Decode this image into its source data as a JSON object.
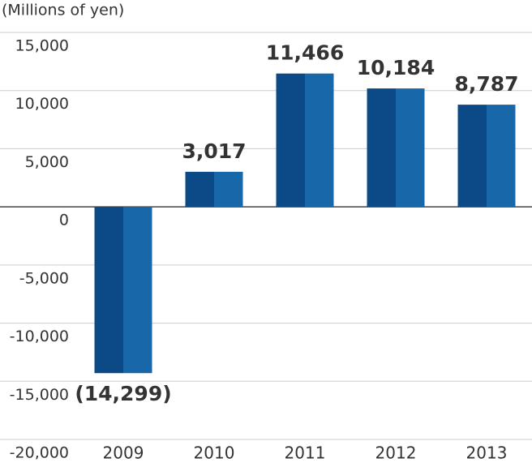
{
  "chart_data": {
    "type": "bar",
    "y_axis_label": "(Millions of yen)",
    "categories": [
      "2009",
      "2010",
      "2011",
      "2012",
      "2013"
    ],
    "values": [
      -14299,
      3017,
      11466,
      10184,
      8787
    ],
    "value_labels": [
      "(14,299)",
      "3,017",
      "11,466",
      "10,184",
      "8,787"
    ],
    "colors": [
      "#0b4a87",
      "#1767a9"
    ],
    "ylim": [
      -20000,
      15000
    ],
    "yticks": [
      {
        "value": -20000,
        "label": "-20,000"
      },
      {
        "value": -15000,
        "label": "-15,000"
      },
      {
        "value": -10000,
        "label": "-10,000"
      },
      {
        "value": -5000,
        "label": "-5,000"
      },
      0,
      {
        "value": 5000,
        "label": "5,000"
      },
      {
        "value": 10000,
        "label": "10,000"
      },
      {
        "value": 15000,
        "label": "15,000"
      }
    ],
    "grid": true
  }
}
